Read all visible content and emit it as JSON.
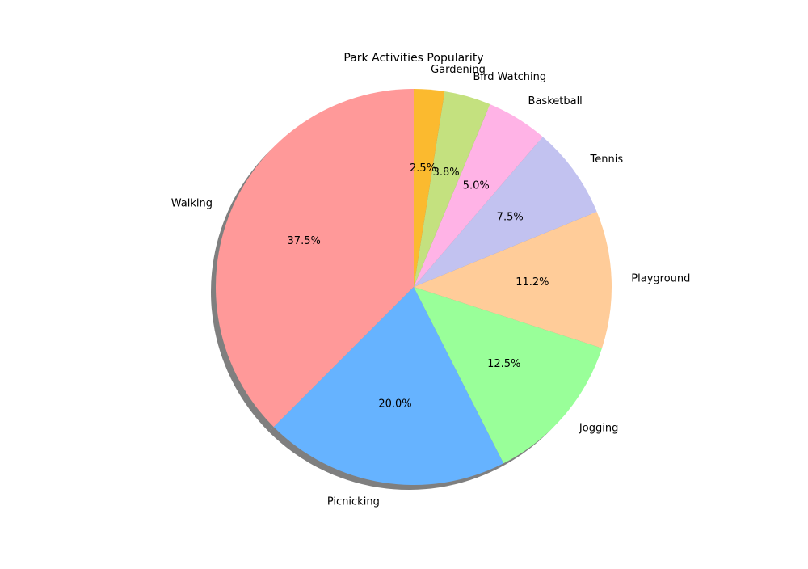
{
  "chart_data": {
    "type": "pie",
    "title": "Park Activities Popularity",
    "start_angle_deg": 90,
    "direction": "counterclockwise",
    "shadow": true,
    "slices": [
      {
        "label": "Walking",
        "value": 37.5,
        "pct_label": "37.5%",
        "color": "#ff9999"
      },
      {
        "label": "Picnicking",
        "value": 20.0,
        "pct_label": "20.0%",
        "color": "#66b3ff"
      },
      {
        "label": "Jogging",
        "value": 12.5,
        "pct_label": "12.5%",
        "color": "#99ff99"
      },
      {
        "label": "Playground",
        "value": 11.2,
        "pct_label": "11.2%",
        "color": "#ffcc99"
      },
      {
        "label": "Tennis",
        "value": 7.5,
        "pct_label": "7.5%",
        "color": "#c2c2f0"
      },
      {
        "label": "Basketball",
        "value": 5.0,
        "pct_label": "5.0%",
        "color": "#ffb3e6"
      },
      {
        "label": "Bird Watching",
        "value": 3.8,
        "pct_label": "3.8%",
        "color": "#c4e17f"
      },
      {
        "label": "Gardening",
        "value": 2.5,
        "pct_label": "2.5%",
        "color": "#fbba2f"
      }
    ]
  }
}
